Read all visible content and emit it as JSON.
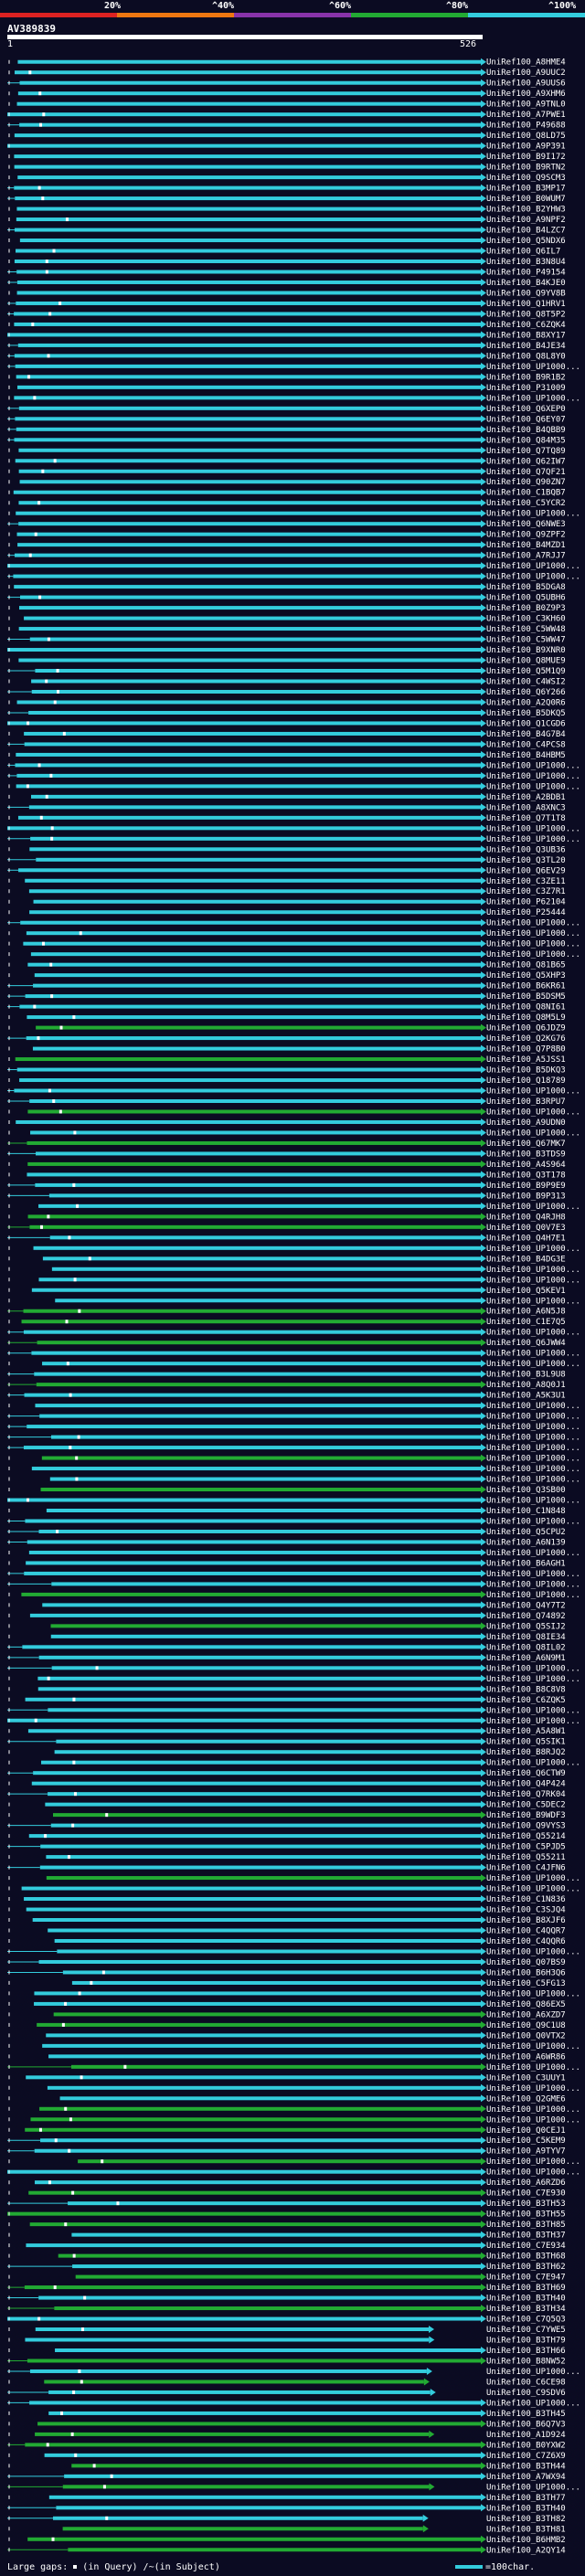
{
  "legend": {
    "colors": [
      "#dd2222",
      "#ee7711",
      "#8833aa",
      "#22aa33",
      "#33ccdd"
    ],
    "labels": [
      "20%",
      "^40%",
      "^60%",
      "^80%",
      "^100%"
    ]
  },
  "query": {
    "name": "AV389839",
    "start": "1",
    "end": "526"
  },
  "footer": {
    "large_gaps": "Large gaps:",
    "in_query": "(in Query)",
    "in_subject": "/~(in Subject)",
    "scale": "=100char."
  },
  "colors": {
    "cyan": "#33ccdd",
    "green": "#22aa33",
    "white": "#ffffff",
    "background": "#0b0b22"
  },
  "hits": [
    "UniRef100_A8HME4",
    "UniRef100_A9UUC2",
    "UniRef100_A9UUS6",
    "UniRef100_A9XHM6",
    "UniRef100_A9TNL0",
    "UniRef100_A7PWE1",
    "UniRef100_P49688",
    "UniRef100_Q8LD75",
    "UniRef100_A9P391",
    "UniRef100_B9I172",
    "UniRef100_B9RTN2",
    "UniRef100_Q9SCM3",
    "UniRef100_B3MP17",
    "UniRef100_B0WUM7",
    "UniRef100_B2YHW3",
    "UniRef100_A9NPF2",
    "UniRef100_B4LZC7",
    "UniRef100_Q5NDX6",
    "UniRef100_Q6IL7",
    "UniRef100_B3N8U4",
    "UniRef100_P49154",
    "UniRef100_B4KJE0",
    "UniRef100_Q9YV8B",
    "UniRef100_Q1HRV1",
    "UniRef100_Q8T5P2",
    "UniRef100_C6ZQK4",
    "UniRef100_B8XY17",
    "UniRef100_B4JE34",
    "UniRef100_Q8L8Y0",
    "UniRef100_UP1000...",
    "UniRef100_B9R1B2",
    "UniRef100_P31009",
    "UniRef100_UP1000...",
    "UniRef100_Q6XEP0",
    "UniRef100_Q6EY07",
    "UniRef100_B4QBB9",
    "UniRef100_Q84M35",
    "UniRef100_Q7TQ89",
    "UniRef100_Q62IW7",
    "UniRef100_Q7QF21",
    "UniRef100_Q90ZN7",
    "UniRef100_C1BQB7",
    "UniRef100_C5YCR2",
    "UniRef100_UP1000...",
    "UniRef100_Q6NWE3",
    "UniRef100_Q9ZPF2",
    "UniRef100_B4MZD1",
    "UniRef100_A7RJJ7",
    "UniRef100_UP1000...",
    "UniRef100_UP1000...",
    "UniRef100_B5DGA8",
    "UniRef100_Q5UBH6",
    "UniRef100_B0Z9P3",
    "UniRef100_C3KH60",
    "UniRef100_C5WW48",
    "UniRef100_C5WW47",
    "UniRef100_B9XNR0",
    "UniRef100_Q8MUE9",
    "UniRef100_Q5M1Q9",
    "UniRef100_C4WSI2",
    "UniRef100_Q6Y266",
    "UniRef100_A2Q0R6",
    "UniRef100_B5DKQ5",
    "UniRef100_Q1CGD6",
    "UniRef100_B4G7B4",
    "UniRef100_C4PCS8",
    "UniRef100_B4HBM5",
    "UniRef100_UP1000...",
    "UniRef100_UP1000...",
    "UniRef100_UP1000...",
    "UniRef100_A2BDB1",
    "UniRef100_A8XNC3",
    "UniRef100_Q7T1T8",
    "UniRef100_UP1000...",
    "UniRef100_UP1000...",
    "UniRef100_Q3UB36",
    "UniRef100_Q3TL20",
    "UniRef100_Q6EV29",
    "UniRef100_C3ZE11",
    "UniRef100_C3Z7R1",
    "UniRef100_P62104",
    "UniRef100_P25444",
    "UniRef100_UP1000...",
    "UniRef100_UP1000...",
    "UniRef100_UP1000...",
    "UniRef100_UP1000...",
    "UniRef100_Q81B65",
    "UniRef100_Q5XHP3",
    "UniRef100_B6KR61",
    "UniRef100_B5DSM5",
    "UniRef100_Q8NI61",
    "UniRef100_Q8M5L9",
    "UniRef100_Q6JDZ9",
    "UniRef100_Q2KG76",
    "UniRef100_Q7P8B0",
    "UniRef100_A5JSS1",
    "UniRef100_B5DKQ3",
    "UniRef100_Q18789",
    "UniRef100_UP1000...",
    "UniRef100_B3RPU7",
    "UniRef100_UP1000...",
    "UniRef100_A9UDN0",
    "UniRef100_UP1000...",
    "UniRef100_Q67MK7",
    "UniRef100_B3TDS9",
    "UniRef100_A4S964",
    "UniRef100_Q3T178",
    "UniRef100_B9P9E9",
    "UniRef100_B9P313",
    "UniRef100_UP1000...",
    "UniRef100_Q4RJH8",
    "UniRef100_Q0V7E3",
    "UniRef100_Q4H7E1",
    "UniRef100_UP1000...",
    "UniRef100_B4DG3E",
    "UniRef100_UP1000...",
    "UniRef100_UP1000...",
    "UniRef100_Q5KEV1",
    "UniRef100_UP1000...",
    "UniRef100_A6N5J8",
    "UniRef100_C1E7Q5",
    "UniRef100_UP1000...",
    "UniRef100_Q6JWW4",
    "UniRef100_UP1000...",
    "UniRef100_UP1000...",
    "UniRef100_B3L9U8",
    "UniRef100_A8Q0J1",
    "UniRef100_A5K3U1",
    "UniRef100_UP1000...",
    "UniRef100_UP1000...",
    "UniRef100_UP1000...",
    "UniRef100_UP1000...",
    "UniRef100_UP1000...",
    "UniRef100_UP1000...",
    "UniRef100_UP1000...",
    "UniRef100_UP1000...",
    "UniRef100_Q3SB00",
    "UniRef100_UP1000...",
    "UniRef100_C1N848",
    "UniRef100_UP1000...",
    "UniRef100_Q5CPU2",
    "UniRef100_A6N139",
    "UniRef100_UP1000...",
    "UniRef100_B6AGH1",
    "UniRef100_UP1000...",
    "UniRef100_UP1000...",
    "UniRef100_UP1000...",
    "UniRef100_Q4Y7T2",
    "UniRef100_Q74892",
    "UniRef100_Q5SIJ2",
    "UniRef100_Q8IE34",
    "UniRef100_Q8IL02",
    "UniRef100_A6N9M1",
    "UniRef100_UP1000...",
    "UniRef100_UP1000...",
    "UniRef100_B8C8V8",
    "UniRef100_C6ZQK5",
    "UniRef100_UP1000...",
    "UniRef100_UP1000...",
    "UniRef100_A5A8W1",
    "UniRef100_Q5SIK1",
    "UniRef100_B8RJQ2",
    "UniRef100_UP1000...",
    "UniRef100_Q6CTW9",
    "UniRef100_Q4P424",
    "UniRef100_Q7RK04",
    "UniRef100_C5DEC2",
    "UniRef100_B9WDF3",
    "UniRef100_Q9VYS3",
    "UniRef100_Q55214",
    "UniRef100_C5PJD5",
    "UniRef100_Q55211",
    "UniRef100_C4JFN6",
    "UniRef100_UP1000...",
    "UniRef100_UP1000...",
    "UniRef100_C1N836",
    "UniRef100_C3SJQ4",
    "UniRef100_B8XJF6",
    "UniRef100_C4QQR7",
    "UniRef100_C4QQR6",
    "UniRef100_UP1000...",
    "UniRef100_Q07BS9",
    "UniRef100_B6H3Q6",
    "UniRef100_C5FG13",
    "UniRef100_UP1000...",
    "UniRef100_Q86EX5",
    "UniRef100_A6XZD7",
    "UniRef100_Q9C1U8",
    "UniRef100_Q0VTX2",
    "UniRef100_UP1000...",
    "UniRef100_A6WR86",
    "UniRef100_UP1000...",
    "UniRef100_C3UUY1",
    "UniRef100_UP1000...",
    "UniRef100_Q2GME6",
    "UniRef100_UP1000...",
    "UniRef100_UP1000...",
    "UniRef100_Q0CEJ1",
    "UniRef100_C5KEM9",
    "UniRef100_A9TYV7",
    "UniRef100_UP1000...",
    "UniRef100_UP1000...",
    "UniRef100_A6RZD6",
    "UniRef100_C7E930",
    "UniRef100_B3TH53",
    "UniRef100_B3TH55",
    "UniRef100_B3TH85",
    "UniRef100_B3TH37",
    "UniRef100_C7E934",
    "UniRef100_B3TH68",
    "UniRef100_B3TH62",
    "UniRef100_C7E947",
    "UniRef100_B3TH69",
    "UniRef100_B3TH40",
    "UniRef100_B3TH34",
    "UniRef100_C7Q5Q3",
    "UniRef100_C7YWE5",
    "UniRef100_B3TH79",
    "UniRef100_B3TH66",
    "UniRef100_B8NW52",
    "UniRef100_UP1000...",
    "UniRef100_C6CE98",
    "UniRef100_C9SDV6",
    "UniRef100_UP1000...",
    "UniRef100_B3TH45",
    "UniRef100_B6Q7V3",
    "UniRef100_A1D924",
    "UniRef100_B0YXW2",
    "UniRef100_C7Z6X9",
    "UniRef100_B3TH44",
    "UniRef100_A7WX94",
    "UniRef100_UP1000...",
    "UniRef100_B3TH77",
    "UniRef100_B3TH40",
    "UniRef100_B3TH82",
    "UniRef100_B3TH81",
    "UniRef100_B6HMB2",
    "UniRef100_A2QY14"
  ]
}
